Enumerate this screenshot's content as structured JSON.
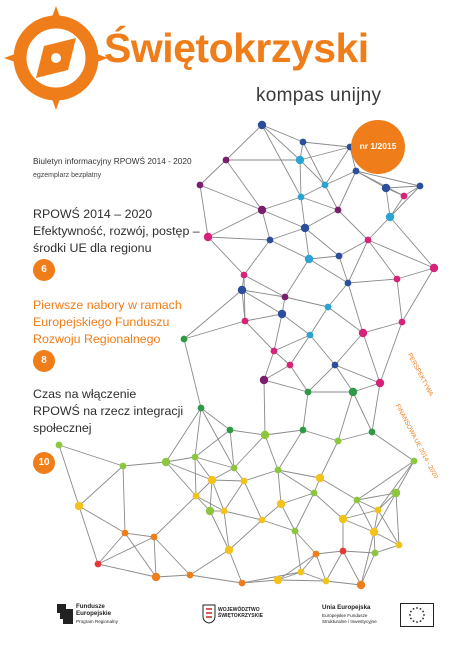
{
  "header": {
    "title": "Świętokrzyski",
    "subtitle": "kompas unijny"
  },
  "issue_badge": "nr 1/2015",
  "bulletin_line": "Biuletyn informacyjny RPOWŚ 2014 - 2020",
  "free_copy": "egzemplarz bezpłatny",
  "articles": [
    {
      "lines": [
        "RPOWŚ 2014 – 2020",
        "Efektywność, rozwój, postęp –",
        "środki UE dla regionu"
      ],
      "page": "6"
    },
    {
      "lines": [
        "Pierwsze nabory w ramach",
        "Europejskiego Funduszu",
        "Rozwoju Regionalnego"
      ],
      "page": "8"
    },
    {
      "lines": [
        "Czas na włączenie",
        "RPOWŚ na rzecz integracji",
        "społecznej"
      ],
      "page": "10"
    }
  ],
  "side_label_1": "PERSPEKTYWA",
  "side_label_2": "FINANSOWA UE 2014 - 2020",
  "footer": {
    "logo1_lines": [
      "Fundusze",
      "Europejskie",
      "Program Regionalny"
    ],
    "logo2_lines": [
      "WOJEWÓDZTWO",
      "ŚWIĘTOKRZYSKIE"
    ],
    "logo3_lines": [
      "Unia Europejska",
      "Europejskie Fundusze",
      "Strukturalne i Inwestycyjne"
    ]
  },
  "colors": {
    "accent": "#ef7d1a",
    "network_line": "#8a8a8a",
    "node_palette": [
      "#2b4f9b",
      "#7a1f6e",
      "#d6237a",
      "#2aa4d4",
      "#2e9a45",
      "#8cc63f",
      "#f2c31a",
      "#ef7d1a",
      "#e53935"
    ]
  }
}
